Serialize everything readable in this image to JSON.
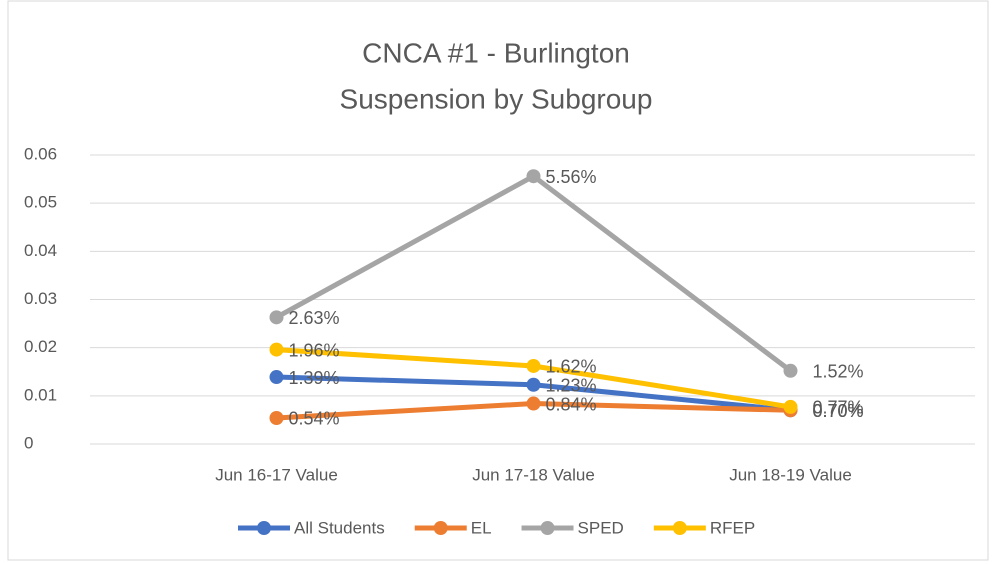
{
  "chart_data": {
    "type": "line",
    "title": [
      "CNCA #1 - Burlington",
      "Suspension by Subgroup"
    ],
    "categories": [
      "Jun 16-17 Value",
      "Jun 17-18 Value",
      "Jun 18-19 Value"
    ],
    "series": [
      {
        "name": "All Students",
        "color": "#4472c4",
        "values": [
          0.0139,
          0.0123,
          0.007
        ],
        "value_labels": [
          "1.39%",
          "1.23%",
          "0.70%"
        ]
      },
      {
        "name": "EL",
        "color": "#ed7d31",
        "values": [
          0.0054,
          0.0084,
          0.007
        ],
        "value_labels": [
          "0.54%",
          "0.84%",
          "0.70%"
        ]
      },
      {
        "name": "SPED",
        "color": "#a5a5a5",
        "values": [
          0.0263,
          0.0556,
          0.0152
        ],
        "value_labels": [
          "2.63%",
          "5.56%",
          "1.52%"
        ]
      },
      {
        "name": "RFEP",
        "color": "#ffc000",
        "values": [
          0.0196,
          0.0162,
          0.0077
        ],
        "value_labels": [
          "1.96%",
          "1.62%",
          "0.77%"
        ]
      }
    ],
    "ylim": [
      0,
      0.06
    ],
    "yticks": [
      0,
      0.01,
      0.02,
      0.03,
      0.04,
      0.05,
      0.06
    ],
    "grid": true,
    "legend": "bottom"
  }
}
